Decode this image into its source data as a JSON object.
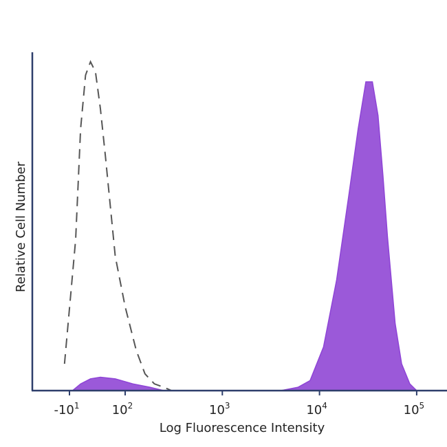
{
  "chart_data": {
    "type": "area",
    "title": "",
    "xlabel": "Log Fluorescence Intensity",
    "ylabel": "Relative Cell Number",
    "x_scale": "biexponential-log",
    "xlim": [
      -20,
      100000
    ],
    "ylim": [
      0,
      1.0
    ],
    "grid": false,
    "legend": "none",
    "x_ticks": [
      {
        "value": -10,
        "base": "-10",
        "exp": "1"
      },
      {
        "value": 100,
        "base": "10",
        "exp": "2"
      },
      {
        "value": 1000,
        "base": "10",
        "exp": "3"
      },
      {
        "value": 10000,
        "base": "10",
        "exp": "4"
      },
      {
        "value": 100000,
        "base": "10",
        "exp": "5"
      }
    ],
    "series": [
      {
        "style": "dashed-outline",
        "color": "#555555",
        "x": [
          -18,
          0,
          10,
          20,
          30,
          40,
          50,
          60,
          70,
          80,
          100,
          130,
          160,
          200,
          250,
          300
        ],
        "y": [
          0.08,
          0.45,
          0.78,
          0.94,
          0.98,
          0.95,
          0.84,
          0.7,
          0.55,
          0.4,
          0.25,
          0.12,
          0.05,
          0.02,
          0.01,
          0.0
        ]
      },
      {
        "style": "filled",
        "color": "#9b59d9",
        "x": [
          -5,
          10,
          30,
          50,
          80,
          120,
          180,
          250,
          4000,
          6000,
          8000,
          11000,
          15000,
          20000,
          25000,
          30000,
          35000,
          40000,
          45000,
          50000,
          60000,
          70000,
          85000,
          100000
        ],
        "y": [
          0.0,
          0.02,
          0.035,
          0.04,
          0.035,
          0.02,
          0.01,
          0.0,
          0.0,
          0.01,
          0.03,
          0.13,
          0.33,
          0.58,
          0.78,
          0.92,
          0.92,
          0.82,
          0.64,
          0.46,
          0.2,
          0.08,
          0.02,
          0.0
        ]
      }
    ]
  }
}
